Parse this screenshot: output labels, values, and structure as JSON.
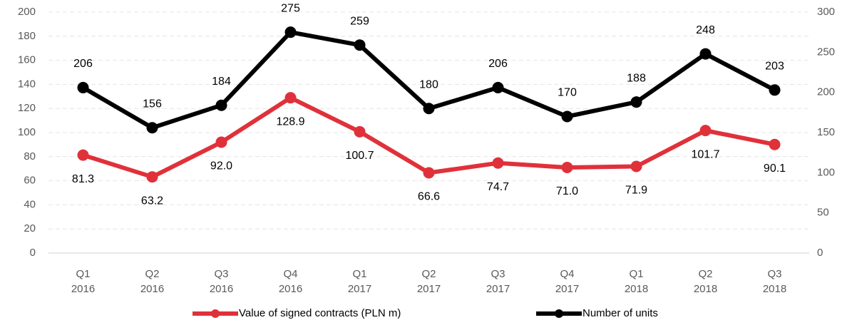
{
  "chart_data": {
    "type": "line",
    "categories": [
      "Q1 2016",
      "Q2 2016",
      "Q3 2016",
      "Q4 2016",
      "Q1 2017",
      "Q2 2017",
      "Q3 2017",
      "Q4 2017",
      "Q1 2018",
      "Q2 2018",
      "Q3 2018"
    ],
    "series": [
      {
        "name": "Value of signed contracts (PLN m)",
        "color": "#e0313a",
        "axis": "y",
        "values": [
          81.3,
          63.2,
          92.0,
          128.9,
          100.7,
          66.6,
          74.7,
          71.0,
          71.9,
          101.7,
          90.1
        ],
        "value_labels": [
          "81.3",
          "63.2",
          "92.0",
          "128.9",
          "100.7",
          "66.6",
          "74.7",
          "71.0",
          "71.9",
          "101.7",
          "90.1"
        ]
      },
      {
        "name": "Number of units",
        "color": "#000000",
        "axis": "y2",
        "values": [
          206,
          156,
          184,
          275,
          259,
          180,
          206,
          170,
          188,
          248,
          203
        ]
      }
    ],
    "ylim": [
      0,
      200
    ],
    "yticks": [
      0,
      20,
      40,
      60,
      80,
      100,
      120,
      140,
      160,
      180,
      200
    ],
    "y2lim": [
      0,
      300
    ],
    "y2ticks": [
      0,
      50,
      100,
      150,
      200,
      250,
      300
    ],
    "grid": true,
    "legend": "bottom"
  }
}
